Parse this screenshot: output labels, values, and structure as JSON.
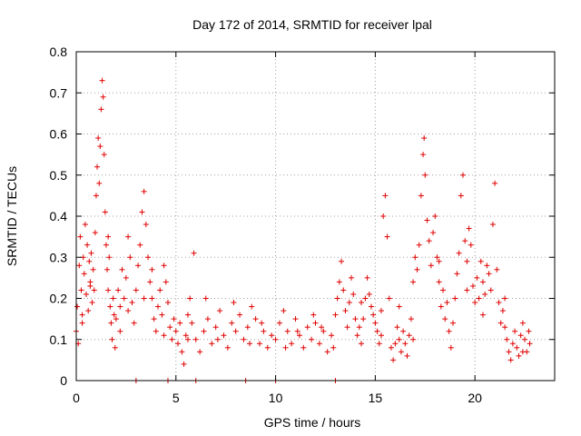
{
  "chart_data": {
    "type": "scatter",
    "title": "Day 172 of 2014, SRMTID for receiver lpal",
    "xlabel": "GPS time / hours",
    "ylabel": "SRMTID / TECUs",
    "xlim": [
      0,
      24
    ],
    "ylim": [
      0,
      0.8
    ],
    "xticks": [
      "0",
      "5",
      "10",
      "15",
      "20"
    ],
    "xtick_values": [
      0,
      5,
      10,
      15,
      20
    ],
    "yticks": [
      "0",
      "0.1",
      "0.2",
      "0.3",
      "0.4",
      "0.5",
      "0.6",
      "0.7",
      "0.8"
    ],
    "ytick_values": [
      0,
      0.1,
      0.2,
      0.3,
      0.4,
      0.5,
      0.6,
      0.7,
      0.8
    ],
    "grid": true,
    "marker": "plus",
    "color": "#e00000",
    "series": [
      {
        "name": "SRMTID",
        "points": [
          [
            0.0,
            0.12
          ],
          [
            0.05,
            0.18
          ],
          [
            0.1,
            0.09
          ],
          [
            0.15,
            0.28
          ],
          [
            0.2,
            0.35
          ],
          [
            0.25,
            0.22
          ],
          [
            0.3,
            0.14
          ],
          [
            0.35,
            0.3
          ],
          [
            0.4,
            0.26
          ],
          [
            0.45,
            0.38
          ],
          [
            0.5,
            0.21
          ],
          [
            0.55,
            0.33
          ],
          [
            0.6,
            0.17
          ],
          [
            0.65,
            0.29
          ],
          [
            0.7,
            0.24
          ],
          [
            0.75,
            0.31
          ],
          [
            0.8,
            0.19
          ],
          [
            0.85,
            0.27
          ],
          [
            0.9,
            0.22
          ],
          [
            0.95,
            0.36
          ],
          [
            1.0,
            0.45
          ],
          [
            1.05,
            0.52
          ],
          [
            1.1,
            0.59
          ],
          [
            1.15,
            0.48
          ],
          [
            1.2,
            0.57
          ],
          [
            1.25,
            0.66
          ],
          [
            1.3,
            0.73
          ],
          [
            1.35,
            0.69
          ],
          [
            1.4,
            0.55
          ],
          [
            1.45,
            0.41
          ],
          [
            1.5,
            0.33
          ],
          [
            1.55,
            0.27
          ],
          [
            1.6,
            0.22
          ],
          [
            1.65,
            0.3
          ],
          [
            1.7,
            0.18
          ],
          [
            1.75,
            0.14
          ],
          [
            1.8,
            0.1
          ],
          [
            1.85,
            0.2
          ],
          [
            1.9,
            0.16
          ],
          [
            1.95,
            0.08
          ],
          [
            2.0,
            0.15
          ],
          [
            2.1,
            0.22
          ],
          [
            2.2,
            0.18
          ],
          [
            2.3,
            0.27
          ],
          [
            2.4,
            0.2
          ],
          [
            2.5,
            0.25
          ],
          [
            2.6,
            0.35
          ],
          [
            2.7,
            0.3
          ],
          [
            2.8,
            0.19
          ],
          [
            2.9,
            0.14
          ],
          [
            3.0,
            0.22
          ],
          [
            3.1,
            0.28
          ],
          [
            3.2,
            0.33
          ],
          [
            3.3,
            0.41
          ],
          [
            3.4,
            0.46
          ],
          [
            3.5,
            0.38
          ],
          [
            3.6,
            0.3
          ],
          [
            3.7,
            0.24
          ],
          [
            3.8,
            0.2
          ],
          [
            3.9,
            0.15
          ],
          [
            4.0,
            0.12
          ],
          [
            4.1,
            0.18
          ],
          [
            4.2,
            0.22
          ],
          [
            4.3,
            0.16
          ],
          [
            4.4,
            0.28
          ],
          [
            4.5,
            0.24
          ],
          [
            4.6,
            0.19
          ],
          [
            4.7,
            0.13
          ],
          [
            4.8,
            0.1
          ],
          [
            4.9,
            0.15
          ],
          [
            5.0,
            0.12
          ],
          [
            5.1,
            0.09
          ],
          [
            5.2,
            0.14
          ],
          [
            5.3,
            0.07
          ],
          [
            5.4,
            0.04
          ],
          [
            5.5,
            0.11
          ],
          [
            5.6,
            0.16
          ],
          [
            5.7,
            0.2
          ],
          [
            5.8,
            0.14
          ],
          [
            5.9,
            0.31
          ],
          [
            6.0,
            0.1
          ],
          [
            6.2,
            0.07
          ],
          [
            6.4,
            0.12
          ],
          [
            6.6,
            0.15
          ],
          [
            6.8,
            0.09
          ],
          [
            7.0,
            0.13
          ],
          [
            7.2,
            0.17
          ],
          [
            7.4,
            0.11
          ],
          [
            7.6,
            0.08
          ],
          [
            7.8,
            0.14
          ],
          [
            8.0,
            0.12
          ],
          [
            8.2,
            0.16
          ],
          [
            8.4,
            0.1
          ],
          [
            8.6,
            0.13
          ],
          [
            8.8,
            0.18
          ],
          [
            9.0,
            0.15
          ],
          [
            9.2,
            0.09
          ],
          [
            9.4,
            0.12
          ],
          [
            9.6,
            0.08
          ],
          [
            9.8,
            0.11
          ],
          [
            10.0,
            0.1
          ],
          [
            10.2,
            0.14
          ],
          [
            10.4,
            0.17
          ],
          [
            10.6,
            0.12
          ],
          [
            10.8,
            0.09
          ],
          [
            11.0,
            0.15
          ],
          [
            11.2,
            0.11
          ],
          [
            11.4,
            0.08
          ],
          [
            11.6,
            0.13
          ],
          [
            11.8,
            0.1
          ],
          [
            12.0,
            0.14
          ],
          [
            12.2,
            0.09
          ],
          [
            12.4,
            0.12
          ],
          [
            12.6,
            0.07
          ],
          [
            12.8,
            0.11
          ],
          [
            13.0,
            0.16
          ],
          [
            13.1,
            0.2
          ],
          [
            13.2,
            0.24
          ],
          [
            13.3,
            0.29
          ],
          [
            13.4,
            0.22
          ],
          [
            13.5,
            0.17
          ],
          [
            13.6,
            0.13
          ],
          [
            13.7,
            0.19
          ],
          [
            13.8,
            0.25
          ],
          [
            13.9,
            0.21
          ],
          [
            14.0,
            0.15
          ],
          [
            14.1,
            0.11
          ],
          [
            14.2,
            0.13
          ],
          [
            14.3,
            0.09
          ],
          [
            14.4,
            0.15
          ],
          [
            14.5,
            0.2
          ],
          [
            14.6,
            0.25
          ],
          [
            14.7,
            0.21
          ],
          [
            14.8,
            0.18
          ],
          [
            14.9,
            0.16
          ],
          [
            15.0,
            0.14
          ],
          [
            15.1,
            0.12
          ],
          [
            15.2,
            0.09
          ],
          [
            15.3,
            0.11
          ],
          [
            15.4,
            0.4
          ],
          [
            15.5,
            0.45
          ],
          [
            15.6,
            0.35
          ],
          [
            15.7,
            0.2
          ],
          [
            15.8,
            0.08
          ],
          [
            15.9,
            0.05
          ],
          [
            16.0,
            0.09
          ],
          [
            16.1,
            0.13
          ],
          [
            16.2,
            0.1
          ],
          [
            16.3,
            0.07
          ],
          [
            16.4,
            0.12
          ],
          [
            16.5,
            0.09
          ],
          [
            16.6,
            0.06
          ],
          [
            16.7,
            0.11
          ],
          [
            16.8,
            0.15
          ],
          [
            16.9,
            0.24
          ],
          [
            17.0,
            0.3
          ],
          [
            17.1,
            0.27
          ],
          [
            17.2,
            0.33
          ],
          [
            17.3,
            0.45
          ],
          [
            17.4,
            0.55
          ],
          [
            17.45,
            0.59
          ],
          [
            17.5,
            0.5
          ],
          [
            17.6,
            0.39
          ],
          [
            17.7,
            0.34
          ],
          [
            17.8,
            0.28
          ],
          [
            17.9,
            0.36
          ],
          [
            18.0,
            0.4
          ],
          [
            18.1,
            0.3
          ],
          [
            18.2,
            0.24
          ],
          [
            18.3,
            0.18
          ],
          [
            18.4,
            0.22
          ],
          [
            18.5,
            0.15
          ],
          [
            18.6,
            0.19
          ],
          [
            18.7,
            0.12
          ],
          [
            18.8,
            0.08
          ],
          [
            18.9,
            0.14
          ],
          [
            19.0,
            0.2
          ],
          [
            19.1,
            0.26
          ],
          [
            19.2,
            0.31
          ],
          [
            19.3,
            0.45
          ],
          [
            19.4,
            0.5
          ],
          [
            19.5,
            0.34
          ],
          [
            19.6,
            0.29
          ],
          [
            19.7,
            0.37
          ],
          [
            19.8,
            0.33
          ],
          [
            19.9,
            0.23
          ],
          [
            20.0,
            0.19
          ],
          [
            20.1,
            0.25
          ],
          [
            20.2,
            0.2
          ],
          [
            20.3,
            0.29
          ],
          [
            20.4,
            0.24
          ],
          [
            20.5,
            0.21
          ],
          [
            20.6,
            0.28
          ],
          [
            20.7,
            0.26
          ],
          [
            20.8,
            0.22
          ],
          [
            20.9,
            0.38
          ],
          [
            21.0,
            0.48
          ],
          [
            21.1,
            0.27
          ],
          [
            21.2,
            0.19
          ],
          [
            21.3,
            0.14
          ],
          [
            21.4,
            0.17
          ],
          [
            21.5,
            0.13
          ],
          [
            21.6,
            0.1
          ],
          [
            21.7,
            0.07
          ],
          [
            21.8,
            0.05
          ],
          [
            21.9,
            0.09
          ],
          [
            22.0,
            0.12
          ],
          [
            22.1,
            0.08
          ],
          [
            22.2,
            0.06
          ],
          [
            22.3,
            0.11
          ],
          [
            22.4,
            0.14
          ],
          [
            22.5,
            0.1
          ],
          [
            22.6,
            0.07
          ],
          [
            22.7,
            0.12
          ],
          [
            22.75,
            0.09
          ],
          [
            0.3,
            0.16
          ],
          [
            0.7,
            0.23
          ],
          [
            1.6,
            0.35
          ],
          [
            2.2,
            0.12
          ],
          [
            2.6,
            0.17
          ],
          [
            3.4,
            0.2
          ],
          [
            3.8,
            0.27
          ],
          [
            4.4,
            0.11
          ],
          [
            5.6,
            0.1
          ],
          [
            6.5,
            0.2
          ],
          [
            7.1,
            0.1
          ],
          [
            7.9,
            0.19
          ],
          [
            8.7,
            0.09
          ],
          [
            9.3,
            0.14
          ],
          [
            10.5,
            0.08
          ],
          [
            11.1,
            0.12
          ],
          [
            11.9,
            0.16
          ],
          [
            12.3,
            0.13
          ],
          [
            12.9,
            0.08
          ],
          [
            14.3,
            0.19
          ],
          [
            15.3,
            0.17
          ],
          [
            16.2,
            0.18
          ],
          [
            16.9,
            0.1
          ],
          [
            18.2,
            0.29
          ],
          [
            19.6,
            0.22
          ],
          [
            20.4,
            0.16
          ],
          [
            21.5,
            0.2
          ],
          [
            22.4,
            0.07
          ]
        ]
      }
    ],
    "zero_markers": [
      3.0,
      4.6,
      6.0,
      8.5,
      10.0,
      13.0
    ]
  }
}
